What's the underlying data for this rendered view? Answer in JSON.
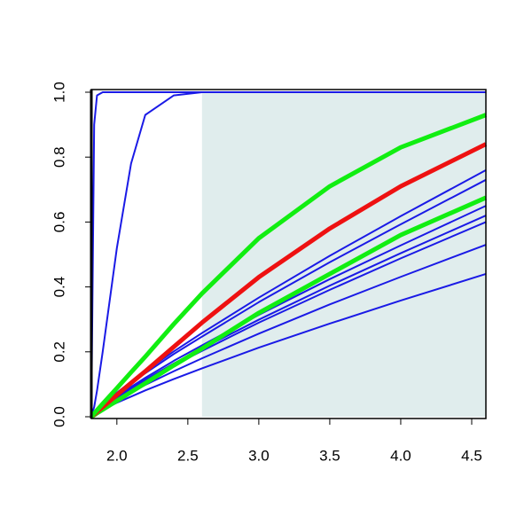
{
  "chart_data": {
    "type": "line",
    "x": [
      1.82,
      1.84,
      1.86,
      1.9,
      2.0,
      2.1,
      2.2,
      2.4,
      2.6,
      3.0,
      3.5,
      4.0,
      4.6
    ],
    "series": [
      {
        "color": "#1a1ae6",
        "width": 2,
        "values": [
          0,
          0.9,
          0.99,
          1,
          1,
          1,
          1,
          1,
          1,
          1,
          1,
          1,
          1
        ]
      },
      {
        "color": "#1a1ae6",
        "width": 2,
        "values": [
          0,
          0.03,
          0.08,
          0.2,
          0.52,
          0.78,
          0.93,
          0.99,
          1,
          1,
          1,
          1,
          1
        ]
      },
      {
        "color": "#1a1ae6",
        "width": 2,
        "values": [
          0,
          0.011,
          0.021,
          0.037,
          0.074,
          0.108,
          0.14,
          0.201,
          0.258,
          0.367,
          0.496,
          0.618,
          0.76
        ]
      },
      {
        "color": "#1a1ae6",
        "width": 2,
        "values": [
          0,
          0.011,
          0.02,
          0.036,
          0.072,
          0.104,
          0.134,
          0.193,
          0.247,
          0.353,
          0.476,
          0.593,
          0.73
        ]
      },
      {
        "color": "#1a1ae6",
        "width": 2,
        "values": [
          0,
          0.01,
          0.018,
          0.032,
          0.064,
          0.092,
          0.12,
          0.172,
          0.22,
          0.314,
          0.424,
          0.528,
          0.65
        ]
      },
      {
        "color": "#1a1ae6",
        "width": 2,
        "values": [
          0,
          0.009,
          0.017,
          0.03,
          0.061,
          0.088,
          0.114,
          0.164,
          0.21,
          0.299,
          0.404,
          0.504,
          0.62
        ]
      },
      {
        "color": "#1a1ae6",
        "width": 2,
        "values": [
          0,
          0.009,
          0.016,
          0.029,
          0.059,
          0.085,
          0.11,
          0.158,
          0.203,
          0.29,
          0.391,
          0.488,
          0.6
        ]
      },
      {
        "color": "#1a1ae6",
        "width": 2,
        "values": [
          0,
          0.008,
          0.014,
          0.026,
          0.052,
          0.075,
          0.098,
          0.14,
          0.18,
          0.256,
          0.346,
          0.431,
          0.53
        ]
      },
      {
        "color": "#1a1ae6",
        "width": 2,
        "values": [
          0,
          0.007,
          0.012,
          0.022,
          0.043,
          0.062,
          0.081,
          0.116,
          0.149,
          0.213,
          0.287,
          0.358,
          0.44
        ]
      },
      {
        "color": "#11ee11",
        "width": 5,
        "values": [
          0,
          0.005,
          0.011,
          0.022,
          0.049,
          0.076,
          0.103,
          0.158,
          0.21,
          0.32,
          0.44,
          0.56,
          0.675
        ]
      },
      {
        "color": "#ee1111",
        "width": 5,
        "values": [
          0,
          0.007,
          0.015,
          0.03,
          0.067,
          0.104,
          0.14,
          0.215,
          0.29,
          0.43,
          0.58,
          0.71,
          0.84
        ]
      },
      {
        "color": "#11ee11",
        "width": 5,
        "values": [
          0,
          0.01,
          0.02,
          0.04,
          0.088,
          0.137,
          0.185,
          0.285,
          0.38,
          0.55,
          0.71,
          0.83,
          0.93
        ]
      }
    ],
    "shaded_region": {
      "x": [
        2.6,
        4.6
      ],
      "color": "#e0eded"
    },
    "xlim": [
      1.82,
      4.6
    ],
    "ylim": [
      0,
      1
    ],
    "xticks": [
      {
        "value": 2,
        "label": "2.0"
      },
      2.5,
      {
        "value": 3,
        "label": "3.0"
      },
      3.5,
      {
        "value": 4,
        "label": "4.0"
      },
      4.5
    ],
    "yticks": [
      {
        "value": 0,
        "label": "0.0"
      },
      0.2,
      0.4,
      0.6,
      0.8,
      {
        "value": 1,
        "label": "1.0"
      }
    ]
  }
}
